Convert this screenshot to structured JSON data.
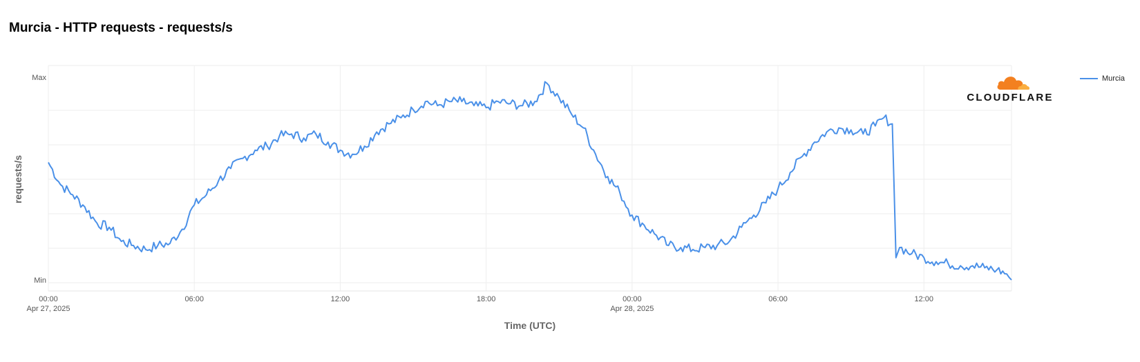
{
  "title": "Murcia - HTTP requests - requests/s",
  "logo": {
    "icon": "cloudflare-cloud-icon",
    "text": "CLOUDFLARE",
    "colors": [
      "#f38020",
      "#faae40"
    ]
  },
  "chart_data": {
    "type": "line",
    "title": "Murcia - HTTP requests - requests/s",
    "xlabel": "Time (UTC)",
    "ylabel": "requests/s",
    "y_ticks": [
      "Min",
      "Max"
    ],
    "x_ticks": [
      {
        "label": "00:00",
        "sublabel": "Apr 27, 2025",
        "hour": 0
      },
      {
        "label": "06:00",
        "sublabel": "",
        "hour": 6
      },
      {
        "label": "12:00",
        "sublabel": "",
        "hour": 12
      },
      {
        "label": "18:00",
        "sublabel": "",
        "hour": 18
      },
      {
        "label": "00:00",
        "sublabel": "Apr 28, 2025",
        "hour": 24
      },
      {
        "label": "06:00",
        "sublabel": "",
        "hour": 30
      },
      {
        "label": "12:00",
        "sublabel": "",
        "hour": 36
      }
    ],
    "xlim_hours": [
      0,
      39.6
    ],
    "ylim": [
      0,
      1
    ],
    "grid": true,
    "legend_position": "top-right",
    "series": [
      {
        "name": "Murcia",
        "color": "#4a90e8",
        "points": [
          [
            0,
            0.58
          ],
          [
            0.5,
            0.47
          ],
          [
            1,
            0.42
          ],
          [
            1.5,
            0.36
          ],
          [
            2,
            0.28
          ],
          [
            2.5,
            0.26
          ],
          [
            3,
            0.19
          ],
          [
            3.5,
            0.17
          ],
          [
            4,
            0.15
          ],
          [
            4.5,
            0.17
          ],
          [
            5,
            0.18
          ],
          [
            5.5,
            0.25
          ],
          [
            6,
            0.37
          ],
          [
            6.5,
            0.42
          ],
          [
            7,
            0.49
          ],
          [
            7.5,
            0.55
          ],
          [
            8,
            0.6
          ],
          [
            8.5,
            0.64
          ],
          [
            9,
            0.66
          ],
          [
            9.5,
            0.71
          ],
          [
            10,
            0.72
          ],
          [
            10.5,
            0.7
          ],
          [
            11,
            0.72
          ],
          [
            11.5,
            0.68
          ],
          [
            12,
            0.64
          ],
          [
            12.5,
            0.62
          ],
          [
            13,
            0.66
          ],
          [
            13.5,
            0.73
          ],
          [
            14,
            0.77
          ],
          [
            14.5,
            0.8
          ],
          [
            15,
            0.84
          ],
          [
            15.5,
            0.88
          ],
          [
            16,
            0.86
          ],
          [
            16.5,
            0.88
          ],
          [
            17,
            0.88
          ],
          [
            17.5,
            0.86
          ],
          [
            18,
            0.85
          ],
          [
            18.5,
            0.88
          ],
          [
            19,
            0.87
          ],
          [
            19.5,
            0.86
          ],
          [
            20,
            0.88
          ],
          [
            20.5,
            0.97
          ],
          [
            21,
            0.9
          ],
          [
            21.5,
            0.82
          ],
          [
            22,
            0.75
          ],
          [
            22.5,
            0.62
          ],
          [
            23,
            0.51
          ],
          [
            23.5,
            0.43
          ],
          [
            24,
            0.32
          ],
          [
            24.5,
            0.27
          ],
          [
            25,
            0.22
          ],
          [
            25.5,
            0.17
          ],
          [
            26,
            0.16
          ],
          [
            26.5,
            0.15
          ],
          [
            27,
            0.16
          ],
          [
            27.5,
            0.17
          ],
          [
            28,
            0.19
          ],
          [
            28.5,
            0.26
          ],
          [
            29,
            0.32
          ],
          [
            29.5,
            0.38
          ],
          [
            30,
            0.45
          ],
          [
            30.5,
            0.53
          ],
          [
            31,
            0.61
          ],
          [
            31.5,
            0.68
          ],
          [
            32,
            0.73
          ],
          [
            32.5,
            0.75
          ],
          [
            33,
            0.74
          ],
          [
            33.5,
            0.72
          ],
          [
            34,
            0.76
          ],
          [
            34.35,
            0.8
          ],
          [
            34.7,
            0.77
          ],
          [
            34.85,
            0.11
          ],
          [
            35,
            0.16
          ],
          [
            35.5,
            0.13
          ],
          [
            36,
            0.11
          ],
          [
            36.5,
            0.09
          ],
          [
            37,
            0.08
          ],
          [
            37.5,
            0.07
          ],
          [
            38,
            0.07
          ],
          [
            38.5,
            0.06
          ],
          [
            39,
            0.05
          ],
          [
            39.4,
            0.03
          ],
          [
            39.6,
            0.0
          ]
        ]
      }
    ]
  }
}
